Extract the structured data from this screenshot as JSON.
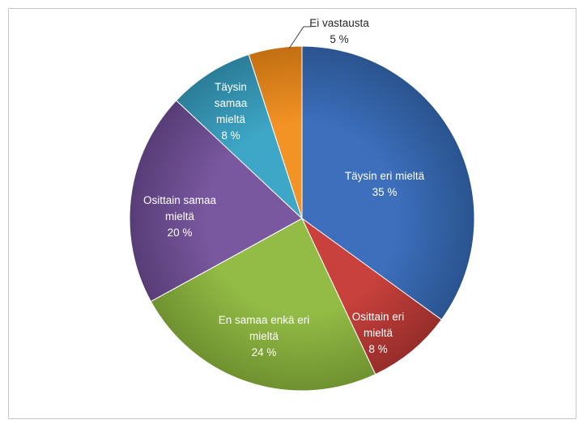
{
  "chart_data": {
    "type": "pie",
    "title": "",
    "slices": [
      {
        "label": "Täysin eri mieltä",
        "value": 35,
        "value_label": "35 %",
        "color": "#3d6fbd",
        "shade": "#2a548f"
      },
      {
        "label": "Osittain eri mieltä",
        "value": 8,
        "value_label": "8 %",
        "color": "#c9413c",
        "shade": "#962d2a"
      },
      {
        "label": "En samaa enkä eri mieltä",
        "value": 24,
        "value_label": "24 %",
        "color": "#93bc46",
        "shade": "#6f9130"
      },
      {
        "label": "Osittain samaa mieltä",
        "value": 20,
        "value_label": "20 %",
        "color": "#7a58a0",
        "shade": "#573d77"
      },
      {
        "label": "Täysin samaa mieltä",
        "value": 8,
        "value_label": "8 %",
        "color": "#3ea6c6",
        "shade": "#2b7d98"
      },
      {
        "label": "Ei vastausta",
        "value": 5,
        "value_label": "5 %",
        "color": "#f39225",
        "shade": "#c26f12"
      }
    ],
    "start_angle": "12 o'clock",
    "direction": "clockwise",
    "legend": "none",
    "labels": "on slices"
  }
}
